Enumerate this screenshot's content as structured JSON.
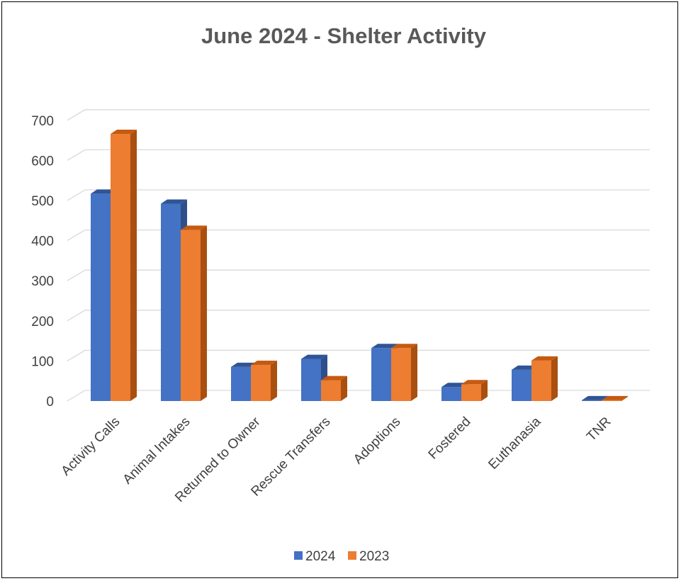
{
  "chart_data": {
    "type": "bar",
    "title": "June 2024 - Shelter Activity",
    "categories": [
      "Activity Calls",
      "Animal Intakes",
      "Returned to Owner",
      "Rescue Transfers",
      "Adoptions",
      "Fostered",
      "Euthanasia",
      "TNR"
    ],
    "series": [
      {
        "name": "2024",
        "values": [
          517,
          492,
          85,
          105,
          132,
          35,
          78,
          2
        ],
        "color": "#4472C4",
        "top_color": "#2F5597",
        "side_color": "#2F4F8A"
      },
      {
        "name": "2023",
        "values": [
          666,
          427,
          90,
          52,
          132,
          42,
          101,
          2
        ],
        "color": "#ED7D31",
        "top_color": "#C55A11",
        "side_color": "#A94F10"
      }
    ],
    "yticks": [
      "0",
      "100",
      "200",
      "300",
      "400",
      "500",
      "600",
      "700"
    ],
    "ylim": [
      0,
      700
    ],
    "grid": true,
    "legend_position": "bottom",
    "style": "3d-clustered-column"
  }
}
